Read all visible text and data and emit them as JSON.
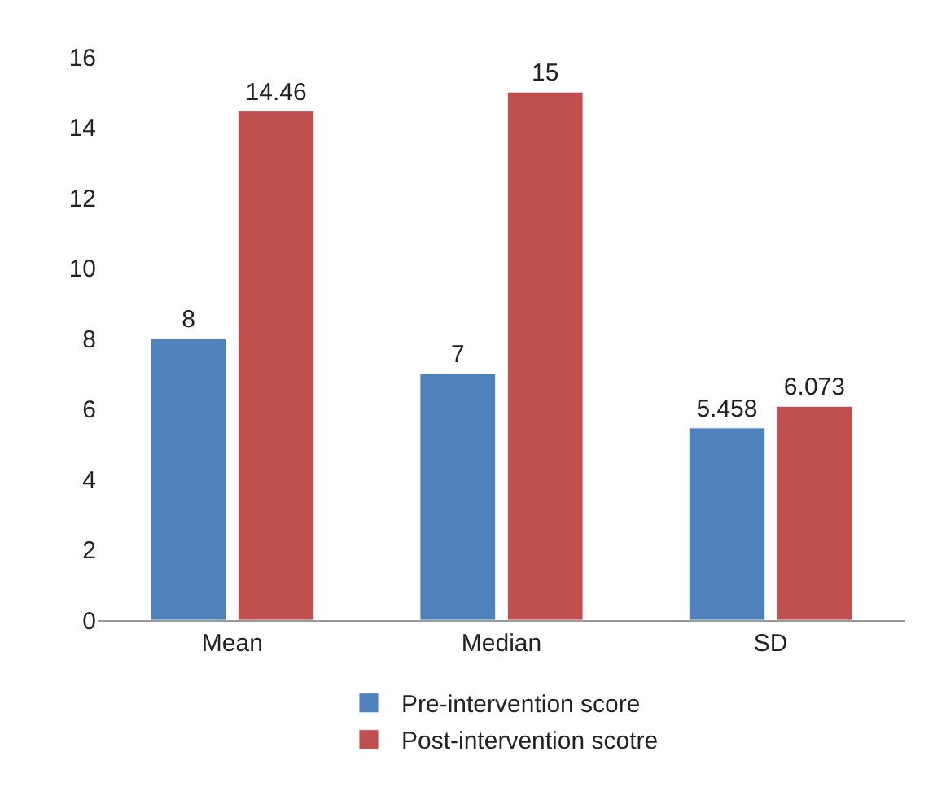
{
  "chart_data": {
    "type": "bar",
    "categories": [
      "Mean",
      "Median",
      "SD"
    ],
    "series": [
      {
        "name": "Pre-intervention score",
        "color": "#4f81bd",
        "values": [
          8,
          7,
          5.458
        ]
      },
      {
        "name": "Post-intervention scotre",
        "color": "#c0504d",
        "values": [
          14.46,
          15,
          6.073
        ]
      }
    ],
    "ylim": [
      0,
      16
    ],
    "yticks": [
      0,
      2,
      4,
      6,
      8,
      10,
      12,
      14,
      16
    ],
    "legend": "bottom",
    "data_labels": true
  }
}
